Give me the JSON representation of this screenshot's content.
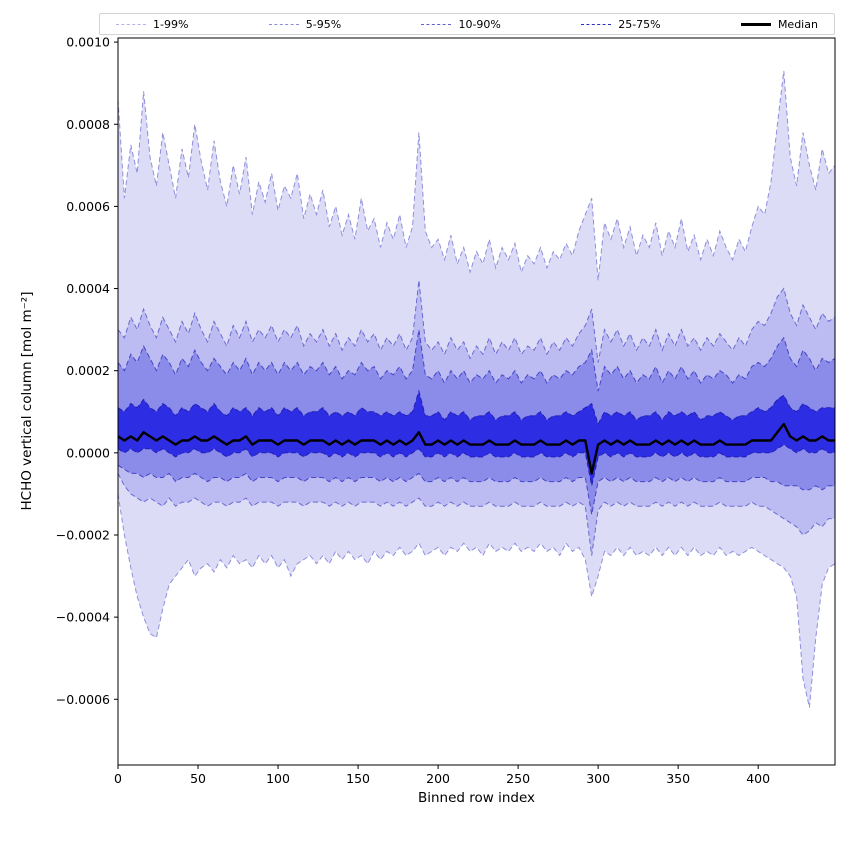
{
  "window": {
    "background": "#ffffff"
  },
  "legend": {
    "items": [
      {
        "label": "1-99%",
        "color": "#b2b2e8",
        "style": "dashed"
      },
      {
        "label": "5-95%",
        "color": "#8c8cde",
        "style": "dashed"
      },
      {
        "label": "10-90%",
        "color": "#5e5ed6",
        "style": "dashed"
      },
      {
        "label": "25-75%",
        "color": "#2d2dc8",
        "style": "dashed"
      },
      {
        "label": "Median",
        "color": "#000000",
        "style": "solid"
      }
    ]
  },
  "axes": {
    "xlabel": "Binned row index",
    "ylabel": "HCHO vertical column [mol m⁻²]",
    "x_ticks": [
      {
        "value": 0,
        "label": "0"
      },
      {
        "value": 50,
        "label": "50"
      },
      {
        "value": 100,
        "label": "100"
      },
      {
        "value": 150,
        "label": "150"
      },
      {
        "value": 200,
        "label": "200"
      },
      {
        "value": 250,
        "label": "250"
      },
      {
        "value": 300,
        "label": "300"
      },
      {
        "value": 350,
        "label": "350"
      },
      {
        "value": 400,
        "label": "400"
      }
    ],
    "y_ticks": [
      {
        "value": 0.001,
        "label": "0.0010"
      },
      {
        "value": 0.0008,
        "label": "0.0008"
      },
      {
        "value": 0.0006,
        "label": "0.0006"
      },
      {
        "value": 0.0004,
        "label": "0.0004"
      },
      {
        "value": 0.0002,
        "label": "0.0002"
      },
      {
        "value": 0.0,
        "label": "0.0000"
      },
      {
        "value": -0.0002,
        "label": "−0.0002"
      },
      {
        "value": -0.0004,
        "label": "−0.0004"
      },
      {
        "value": -0.0006,
        "label": "−0.0006"
      }
    ]
  },
  "chart_data": {
    "type": "area",
    "title": "",
    "xlabel": "Binned row index",
    "ylabel": "HCHO vertical column [mol m⁻²]",
    "xlim": [
      0,
      448
    ],
    "ylim": [
      -0.00076,
      0.00101
    ],
    "grid": false,
    "legend_position": "top",
    "x_start": 0,
    "x_step": 4,
    "value_scale": 1e-05,
    "series": [
      {
        "name": "p99",
        "values": [
          86,
          62,
          75,
          68,
          88,
          72,
          65,
          78,
          70,
          62,
          74,
          67,
          80,
          71,
          64,
          76,
          66,
          60,
          70,
          63,
          72,
          58,
          66,
          61,
          68,
          59,
          65,
          62,
          68,
          57,
          63,
          58,
          64,
          55,
          60,
          53,
          58,
          52,
          62,
          54,
          57,
          50,
          56,
          52,
          58,
          50,
          55,
          78,
          54,
          50,
          52,
          47,
          53,
          46,
          50,
          44,
          49,
          46,
          52,
          45,
          50,
          47,
          51,
          44,
          48,
          46,
          50,
          45,
          49,
          47,
          51,
          48,
          54,
          58,
          62,
          42,
          56,
          52,
          57,
          50,
          55,
          48,
          53,
          50,
          56,
          48,
          54,
          50,
          57,
          49,
          53,
          47,
          52,
          48,
          54,
          50,
          47,
          52,
          49,
          55,
          60,
          58,
          66,
          80,
          93,
          72,
          65,
          78,
          70,
          64,
          74,
          68,
          70
        ]
      },
      {
        "name": "p95",
        "values": [
          30,
          28,
          33,
          30,
          35,
          31,
          28,
          33,
          30,
          27,
          32,
          29,
          34,
          30,
          27,
          32,
          29,
          26,
          31,
          28,
          32,
          27,
          30,
          28,
          31,
          27,
          30,
          28,
          31,
          26,
          29,
          27,
          30,
          26,
          29,
          25,
          28,
          26,
          30,
          27,
          29,
          25,
          28,
          26,
          29,
          25,
          28,
          42,
          27,
          25,
          27,
          24,
          28,
          25,
          27,
          23,
          26,
          24,
          28,
          24,
          27,
          25,
          28,
          24,
          26,
          25,
          28,
          24,
          27,
          25,
          28,
          26,
          29,
          31,
          35,
          22,
          30,
          27,
          30,
          26,
          29,
          25,
          28,
          26,
          30,
          25,
          29,
          26,
          30,
          26,
          28,
          25,
          28,
          26,
          29,
          27,
          25,
          28,
          26,
          30,
          32,
          31,
          34,
          38,
          40,
          34,
          31,
          36,
          33,
          30,
          34,
          32,
          33
        ]
      },
      {
        "name": "p90",
        "values": [
          22,
          20,
          24,
          22,
          26,
          23,
          20,
          24,
          22,
          19,
          23,
          21,
          25,
          22,
          20,
          23,
          21,
          19,
          22,
          20,
          23,
          19,
          22,
          20,
          22,
          19,
          22,
          20,
          22,
          19,
          21,
          20,
          22,
          19,
          21,
          18,
          20,
          19,
          22,
          20,
          21,
          18,
          20,
          19,
          21,
          18,
          20,
          30,
          19,
          18,
          20,
          17,
          20,
          18,
          20,
          17,
          19,
          18,
          20,
          17,
          19,
          18,
          20,
          17,
          19,
          18,
          20,
          17,
          19,
          18,
          20,
          19,
          21,
          22,
          25,
          15,
          21,
          19,
          21,
          18,
          20,
          17,
          19,
          18,
          21,
          17,
          20,
          18,
          21,
          18,
          20,
          17,
          19,
          18,
          20,
          19,
          17,
          19,
          18,
          21,
          22,
          21,
          23,
          26,
          28,
          23,
          21,
          25,
          23,
          20,
          23,
          22,
          23
        ]
      },
      {
        "name": "p75",
        "values": [
          11,
          10,
          12,
          11,
          13,
          11,
          10,
          12,
          11,
          9,
          11,
          10,
          12,
          11,
          10,
          12,
          10,
          9,
          11,
          10,
          11,
          9,
          11,
          10,
          11,
          9,
          11,
          10,
          11,
          9,
          10,
          10,
          11,
          9,
          10,
          9,
          10,
          9,
          11,
          10,
          10,
          9,
          10,
          9,
          10,
          9,
          10,
          15,
          9,
          9,
          10,
          8,
          10,
          9,
          10,
          8,
          9,
          9,
          10,
          8,
          9,
          9,
          10,
          8,
          9,
          9,
          10,
          8,
          9,
          9,
          10,
          9,
          10,
          11,
          12,
          7,
          10,
          9,
          10,
          9,
          10,
          8,
          9,
          9,
          10,
          8,
          10,
          9,
          10,
          9,
          10,
          8,
          9,
          9,
          10,
          9,
          8,
          9,
          9,
          10,
          11,
          10,
          11,
          13,
          14,
          11,
          10,
          12,
          11,
          10,
          11,
          11,
          11
        ]
      },
      {
        "name": "median",
        "values": [
          4,
          3,
          4,
          3,
          5,
          4,
          3,
          4,
          3,
          2,
          3,
          3,
          4,
          3,
          3,
          4,
          3,
          2,
          3,
          3,
          4,
          2,
          3,
          3,
          3,
          2,
          3,
          3,
          3,
          2,
          3,
          3,
          3,
          2,
          3,
          2,
          3,
          2,
          3,
          3,
          3,
          2,
          3,
          2,
          3,
          2,
          3,
          5,
          2,
          2,
          3,
          2,
          3,
          2,
          3,
          2,
          2,
          2,
          3,
          2,
          2,
          2,
          3,
          2,
          2,
          2,
          3,
          2,
          2,
          2,
          3,
          2,
          3,
          3,
          -5,
          2,
          3,
          2,
          3,
          2,
          3,
          2,
          2,
          2,
          3,
          2,
          3,
          2,
          3,
          2,
          3,
          2,
          2,
          2,
          3,
          2,
          2,
          2,
          2,
          3,
          3,
          3,
          3,
          5,
          7,
          4,
          3,
          4,
          3,
          3,
          4,
          3,
          3
        ]
      },
      {
        "name": "p25",
        "values": [
          1,
          0,
          1,
          0,
          1,
          1,
          0,
          1,
          0,
          -1,
          0,
          0,
          1,
          0,
          0,
          1,
          0,
          -1,
          0,
          0,
          1,
          -1,
          0,
          0,
          0,
          -1,
          0,
          0,
          0,
          -1,
          0,
          0,
          0,
          -1,
          0,
          -1,
          0,
          -1,
          0,
          0,
          0,
          -1,
          0,
          -1,
          0,
          -1,
          0,
          1,
          -1,
          -1,
          0,
          -1,
          0,
          -1,
          0,
          -1,
          -1,
          -1,
          0,
          -1,
          -1,
          -1,
          0,
          -1,
          -1,
          -1,
          0,
          -1,
          -1,
          -1,
          0,
          -1,
          0,
          0,
          -8,
          -1,
          0,
          -1,
          0,
          -1,
          0,
          -1,
          -1,
          -1,
          0,
          -1,
          0,
          -1,
          0,
          -1,
          0,
          -1,
          -1,
          -1,
          0,
          -1,
          -1,
          -1,
          -1,
          0,
          0,
          0,
          0,
          1,
          2,
          1,
          0,
          1,
          0,
          0,
          1,
          0,
          0
        ]
      },
      {
        "name": "p10",
        "values": [
          -3,
          -4,
          -5,
          -5,
          -6,
          -5,
          -6,
          -6,
          -5,
          -7,
          -6,
          -6,
          -5,
          -6,
          -7,
          -6,
          -6,
          -7,
          -6,
          -6,
          -5,
          -7,
          -6,
          -6,
          -6,
          -7,
          -6,
          -6,
          -6,
          -7,
          -6,
          -6,
          -6,
          -7,
          -6,
          -7,
          -6,
          -7,
          -6,
          -6,
          -6,
          -7,
          -6,
          -7,
          -6,
          -7,
          -6,
          -5,
          -7,
          -7,
          -6,
          -7,
          -6,
          -7,
          -6,
          -7,
          -7,
          -7,
          -6,
          -7,
          -7,
          -7,
          -6,
          -7,
          -7,
          -7,
          -6,
          -7,
          -7,
          -7,
          -6,
          -7,
          -6,
          -6,
          -15,
          -7,
          -6,
          -7,
          -6,
          -7,
          -6,
          -7,
          -7,
          -7,
          -6,
          -7,
          -6,
          -7,
          -6,
          -7,
          -6,
          -7,
          -7,
          -7,
          -6,
          -7,
          -7,
          -7,
          -7,
          -6,
          -6,
          -6,
          -7,
          -7,
          -8,
          -8,
          -8,
          -9,
          -9,
          -8,
          -9,
          -8,
          -8
        ]
      },
      {
        "name": "p5",
        "values": [
          -5,
          -8,
          -10,
          -11,
          -12,
          -11,
          -12,
          -13,
          -11,
          -13,
          -12,
          -12,
          -11,
          -12,
          -13,
          -12,
          -12,
          -13,
          -12,
          -12,
          -11,
          -13,
          -12,
          -12,
          -12,
          -13,
          -12,
          -12,
          -12,
          -13,
          -12,
          -12,
          -12,
          -13,
          -12,
          -13,
          -12,
          -13,
          -12,
          -12,
          -12,
          -13,
          -12,
          -13,
          -12,
          -13,
          -12,
          -11,
          -13,
          -13,
          -12,
          -13,
          -12,
          -13,
          -12,
          -13,
          -13,
          -13,
          -12,
          -13,
          -13,
          -13,
          -12,
          -13,
          -13,
          -13,
          -12,
          -13,
          -13,
          -13,
          -12,
          -13,
          -12,
          -13,
          -25,
          -14,
          -12,
          -13,
          -12,
          -13,
          -12,
          -13,
          -13,
          -13,
          -12,
          -13,
          -12,
          -13,
          -12,
          -13,
          -12,
          -13,
          -13,
          -13,
          -12,
          -13,
          -13,
          -13,
          -13,
          -12,
          -13,
          -13,
          -14,
          -15,
          -16,
          -17,
          -18,
          -20,
          -19,
          -17,
          -18,
          -16,
          -16
        ]
      },
      {
        "name": "p1",
        "values": [
          -10,
          -20,
          -28,
          -35,
          -40,
          -44,
          -45,
          -38,
          -32,
          -30,
          -28,
          -26,
          -30,
          -28,
          -27,
          -29,
          -26,
          -28,
          -25,
          -27,
          -26,
          -28,
          -25,
          -27,
          -25,
          -28,
          -26,
          -30,
          -27,
          -26,
          -25,
          -27,
          -25,
          -27,
          -24,
          -26,
          -24,
          -26,
          -25,
          -27,
          -24,
          -26,
          -24,
          -25,
          -23,
          -25,
          -24,
          -22,
          -25,
          -24,
          -23,
          -25,
          -23,
          -24,
          -22,
          -24,
          -23,
          -25,
          -22,
          -24,
          -23,
          -24,
          -22,
          -24,
          -23,
          -24,
          -22,
          -24,
          -23,
          -25,
          -22,
          -24,
          -23,
          -26,
          -35,
          -30,
          -24,
          -25,
          -23,
          -25,
          -23,
          -25,
          -24,
          -25,
          -23,
          -25,
          -23,
          -25,
          -23,
          -25,
          -23,
          -25,
          -24,
          -25,
          -23,
          -25,
          -24,
          -25,
          -24,
          -23,
          -24,
          -25,
          -26,
          -27,
          -28,
          -30,
          -35,
          -55,
          -62,
          -45,
          -32,
          -28,
          -27
        ]
      }
    ],
    "bands": [
      {
        "label": "1-99%",
        "lower": "p1",
        "upper": "p99",
        "fill": "#dddcf7",
        "stroke": "#8f8fdc"
      },
      {
        "label": "5-95%",
        "lower": "p5",
        "upper": "p95",
        "fill": "#bcbcf2",
        "stroke": "#6a6ad2"
      },
      {
        "label": "10-90%",
        "lower": "p10",
        "upper": "p90",
        "fill": "#8b8bea",
        "stroke": "#4545c6"
      },
      {
        "label": "25-75%",
        "lower": "p25",
        "upper": "p75",
        "fill": "#2d2de4",
        "stroke": "#2020b0"
      }
    ],
    "median": {
      "series": "median",
      "color": "#000000",
      "width": 2.4
    }
  }
}
